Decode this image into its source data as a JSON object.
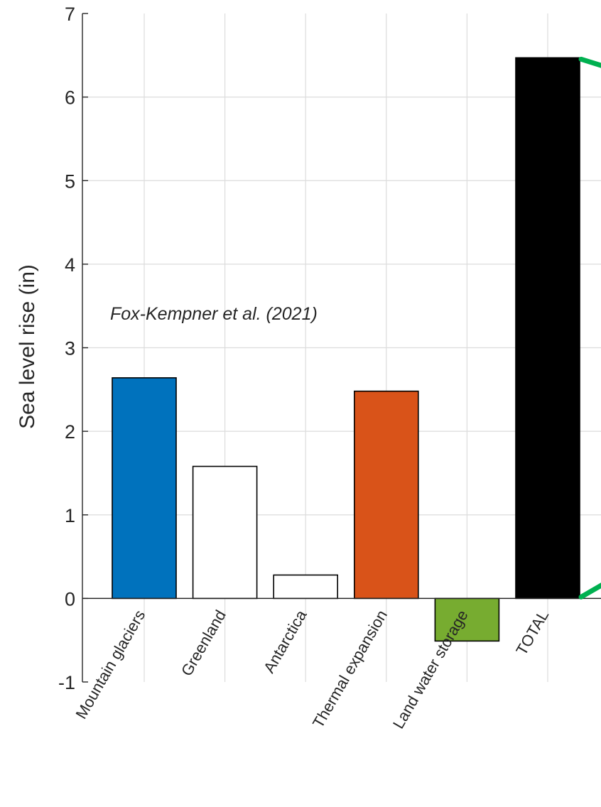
{
  "chart_data": {
    "type": "bar",
    "categories": [
      "Mountain glaciers",
      "Greenland",
      "Antarctica",
      "Thermal expansion",
      "Land water storage",
      "TOTAL"
    ],
    "values": [
      2.64,
      1.58,
      0.28,
      2.48,
      -0.51,
      6.47
    ],
    "bar_colors": [
      "#0072BD",
      "#FFFFFF",
      "#FFFFFF",
      "#D95319",
      "#77AC30",
      "#000000"
    ],
    "ylabel": "Sea level rise (in)",
    "xlabel": "",
    "ylim": [
      -1,
      7
    ],
    "yticks": [
      "-1",
      "0",
      "1",
      "2",
      "3",
      "4",
      "5",
      "6",
      "7"
    ],
    "grid": true,
    "annotation": "Fox-Kempner et al. (2021)",
    "bracket_color": "#00B050"
  }
}
